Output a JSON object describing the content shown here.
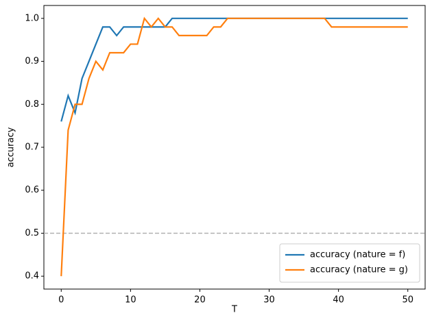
{
  "chart_data": {
    "type": "line",
    "xlabel": "T",
    "ylabel": "accuracy",
    "x": [
      0,
      1,
      2,
      3,
      4,
      5,
      6,
      7,
      8,
      9,
      10,
      11,
      12,
      13,
      14,
      15,
      16,
      17,
      18,
      19,
      20,
      21,
      22,
      23,
      24,
      25,
      26,
      27,
      28,
      29,
      30,
      31,
      32,
      33,
      34,
      35,
      36,
      37,
      38,
      39,
      40,
      41,
      42,
      43,
      44,
      45,
      46,
      47,
      48,
      49,
      50
    ],
    "series": [
      {
        "name": "accuracy (nature = f)",
        "color": "#1f77b4",
        "values": [
          0.76,
          0.82,
          0.78,
          0.86,
          0.9,
          0.94,
          0.98,
          0.98,
          0.96,
          0.98,
          0.98,
          0.98,
          0.98,
          0.98,
          0.98,
          0.98,
          1.0,
          1.0,
          1.0,
          1.0,
          1.0,
          1.0,
          1.0,
          1.0,
          1.0,
          1.0,
          1.0,
          1.0,
          1.0,
          1.0,
          1.0,
          1.0,
          1.0,
          1.0,
          1.0,
          1.0,
          1.0,
          1.0,
          1.0,
          1.0,
          1.0,
          1.0,
          1.0,
          1.0,
          1.0,
          1.0,
          1.0,
          1.0,
          1.0,
          1.0,
          1.0
        ]
      },
      {
        "name": "accuracy (nature = g)",
        "color": "#ff7f0e",
        "values": [
          0.4,
          0.74,
          0.8,
          0.8,
          0.86,
          0.9,
          0.88,
          0.92,
          0.92,
          0.92,
          0.94,
          0.94,
          1.0,
          0.98,
          1.0,
          0.98,
          0.98,
          0.96,
          0.96,
          0.96,
          0.96,
          0.96,
          0.98,
          0.98,
          1.0,
          1.0,
          1.0,
          1.0,
          1.0,
          1.0,
          1.0,
          1.0,
          1.0,
          1.0,
          1.0,
          1.0,
          1.0,
          1.0,
          1.0,
          0.98,
          0.98,
          0.98,
          0.98,
          0.98,
          0.98,
          0.98,
          0.98,
          0.98,
          0.98,
          0.98,
          0.98
        ]
      }
    ],
    "hline": 0.5,
    "hline_color": "#b0b0b0",
    "xlim": [
      -2.5,
      52.5
    ],
    "xticks": [
      0,
      10,
      20,
      30,
      40,
      50
    ],
    "ylim": [
      0.37,
      1.03
    ],
    "yticks": [
      0.4,
      0.5,
      0.6,
      0.7,
      0.8,
      0.9,
      {
        "value": 1,
        "label": "1.0"
      }
    ],
    "legend": "lower right"
  }
}
